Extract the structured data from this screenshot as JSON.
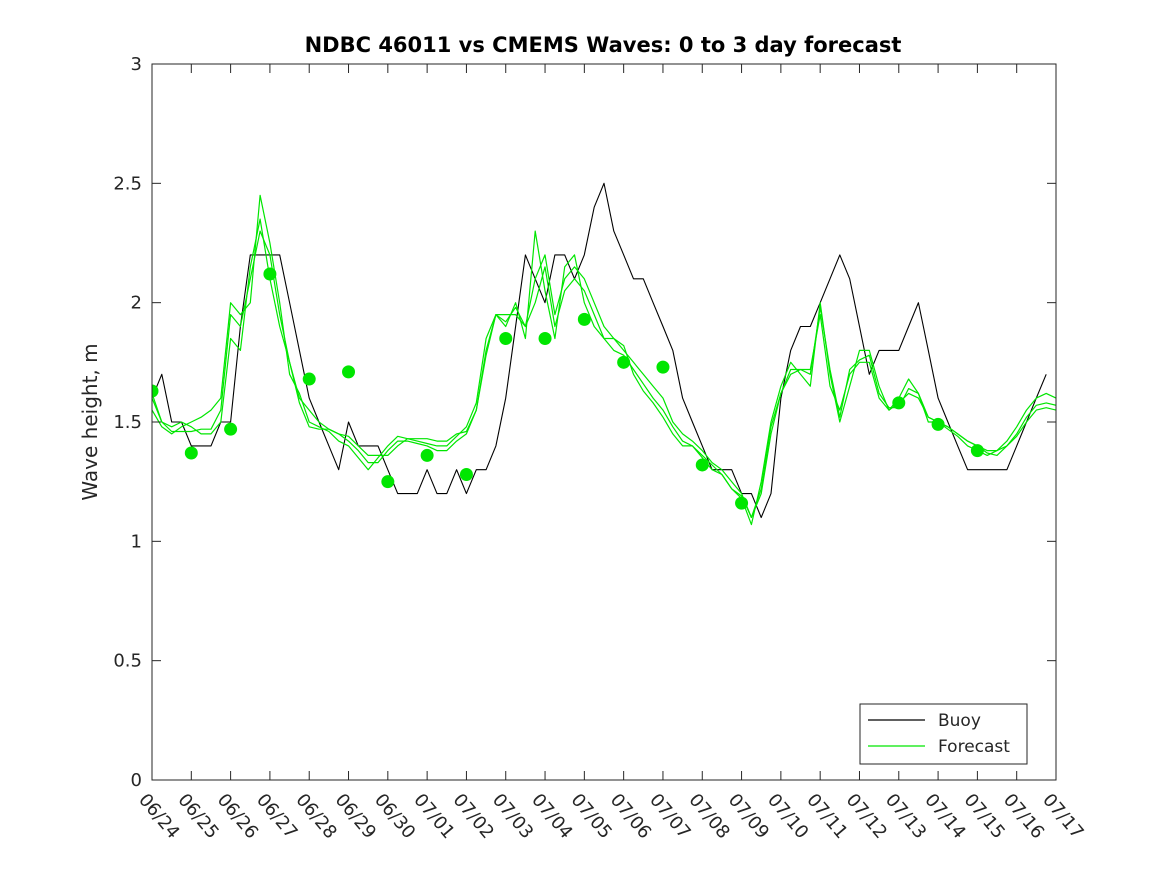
{
  "chart_data": {
    "type": "line",
    "title": "NDBC 46011 vs CMEMS Waves: 0 to 3 day forecast",
    "xlabel": "",
    "ylabel": "Wave height, m",
    "ylim": [
      0,
      3
    ],
    "yticks": [
      "0",
      "0.5",
      "1",
      "1.5",
      "2",
      "2.5",
      "3"
    ],
    "xticks": [
      "06/24",
      "06/25",
      "06/26",
      "06/27",
      "06/28",
      "06/29",
      "06/30",
      "07/01",
      "07/02",
      "07/03",
      "07/04",
      "07/05",
      "07/06",
      "07/07",
      "07/08",
      "07/09",
      "07/10",
      "07/11",
      "07/12",
      "07/13",
      "07/14",
      "07/15",
      "07/16",
      "07/17"
    ],
    "xlim_days": [
      0,
      23
    ],
    "grid": false,
    "legend_position": "bottom-right",
    "legend": [
      {
        "name": "Buoy",
        "color": "#000000"
      },
      {
        "name": "Forecast",
        "color": "#00e600"
      }
    ],
    "series": [
      {
        "name": "Buoy",
        "color": "#000000",
        "x": [
          0,
          0.25,
          0.5,
          0.75,
          1,
          1.25,
          1.5,
          1.75,
          2,
          2.25,
          2.5,
          2.75,
          3,
          3.25,
          3.5,
          3.75,
          4,
          4.25,
          4.5,
          4.75,
          5,
          5.25,
          5.5,
          5.75,
          6,
          6.25,
          6.5,
          6.75,
          7,
          7.25,
          7.5,
          7.75,
          8,
          8.25,
          8.5,
          8.75,
          9,
          9.25,
          9.5,
          9.75,
          10,
          10.25,
          10.5,
          10.75,
          11,
          11.25,
          11.5,
          11.75,
          12,
          12.25,
          12.5,
          12.75,
          13,
          13.25,
          13.5,
          13.75,
          14,
          14.25,
          14.5,
          14.75,
          15,
          15.25,
          15.5,
          15.75,
          16,
          16.25,
          16.5,
          16.75,
          17,
          17.25,
          17.5,
          17.75,
          18,
          18.25,
          18.5,
          18.75,
          19,
          19.25,
          19.5,
          19.75,
          20,
          20.25,
          20.5,
          20.75,
          21,
          21.25,
          21.5,
          21.75,
          22,
          22.25,
          22.5,
          22.75
        ],
        "y": [
          1.6,
          1.7,
          1.5,
          1.5,
          1.4,
          1.4,
          1.4,
          1.5,
          1.5,
          1.9,
          2.2,
          2.2,
          2.2,
          2.2,
          2.0,
          1.8,
          1.6,
          1.5,
          1.4,
          1.3,
          1.5,
          1.4,
          1.4,
          1.4,
          1.3,
          1.2,
          1.2,
          1.2,
          1.3,
          1.2,
          1.2,
          1.3,
          1.2,
          1.3,
          1.3,
          1.4,
          1.6,
          1.9,
          2.2,
          2.1,
          2.0,
          2.2,
          2.2,
          2.1,
          2.2,
          2.4,
          2.5,
          2.3,
          2.2,
          2.1,
          2.1,
          2.0,
          1.9,
          1.8,
          1.6,
          1.5,
          1.4,
          1.3,
          1.3,
          1.3,
          1.2,
          1.2,
          1.1,
          1.2,
          1.6,
          1.8,
          1.9,
          1.9,
          2.0,
          2.1,
          2.2,
          2.1,
          1.9,
          1.7,
          1.8,
          1.8,
          1.8,
          1.9,
          2.0,
          1.8,
          1.6,
          1.5,
          1.4,
          1.3,
          1.3,
          1.3,
          1.3,
          1.3,
          1.4,
          1.5,
          1.6,
          1.7
        ]
      },
      {
        "name": "Forecast",
        "color": "#00e600",
        "x": [
          0,
          0.25,
          0.5,
          0.75,
          1,
          1.25,
          1.5,
          1.75,
          2,
          2.25,
          2.5,
          2.75,
          3,
          3.25,
          3.5,
          3.75,
          4,
          4.25,
          4.5,
          4.75,
          5,
          5.25,
          5.5,
          5.75,
          6,
          6.25,
          6.5,
          6.75,
          7,
          7.25,
          7.5,
          7.75,
          8,
          8.25,
          8.5,
          8.75,
          9,
          9.25,
          9.5,
          9.75,
          10,
          10.25,
          10.5,
          10.75,
          11,
          11.25,
          11.5,
          11.75,
          12,
          12.25,
          12.5,
          12.75,
          13,
          13.25,
          13.5,
          13.75,
          14,
          14.25,
          14.5,
          14.75,
          15,
          15.25,
          15.5,
          15.75,
          16,
          16.25,
          16.5,
          16.75,
          17,
          17.25,
          17.5,
          17.75,
          18,
          18.25,
          18.5,
          18.75,
          19,
          19.25,
          19.5,
          19.75,
          20,
          20.25,
          20.5,
          20.75,
          21,
          21.25,
          21.5,
          21.75,
          22,
          22.25,
          22.5,
          22.75,
          23
        ],
        "y": [
          1.6,
          1.5,
          1.46,
          1.46,
          1.46,
          1.47,
          1.47,
          1.55,
          1.95,
          1.9,
          2.1,
          2.3,
          2.2,
          1.95,
          1.75,
          1.6,
          1.55,
          1.5,
          1.47,
          1.45,
          1.42,
          1.38,
          1.33,
          1.33,
          1.38,
          1.42,
          1.42,
          1.41,
          1.4,
          1.38,
          1.38,
          1.42,
          1.45,
          1.55,
          1.8,
          1.95,
          1.95,
          1.95,
          1.9,
          2.0,
          2.15,
          1.9,
          2.05,
          2.1,
          2.05,
          1.95,
          1.85,
          1.85,
          1.8,
          1.75,
          1.7,
          1.65,
          1.6,
          1.5,
          1.45,
          1.42,
          1.38,
          1.33,
          1.3,
          1.25,
          1.2,
          1.1,
          1.2,
          1.45,
          1.62,
          1.7,
          1.72,
          1.72,
          1.95,
          1.65,
          1.55,
          1.7,
          1.75,
          1.75,
          1.6,
          1.55,
          1.58,
          1.62,
          1.6,
          1.52,
          1.5,
          1.48,
          1.45,
          1.42,
          1.4,
          1.38,
          1.38,
          1.4,
          1.44,
          1.5,
          1.55,
          1.56,
          1.55
        ]
      },
      {
        "name": "Forecast",
        "color": "#00e600",
        "x": [
          0,
          0.25,
          0.5,
          0.75,
          1,
          1.25,
          1.5,
          1.75,
          2,
          2.25,
          2.5,
          2.75,
          3,
          3.25,
          3.5,
          3.75,
          4,
          4.25,
          4.5,
          4.75,
          5,
          5.25,
          5.5,
          5.75,
          6,
          6.25,
          6.5,
          6.75,
          7,
          7.25,
          7.5,
          7.75,
          8,
          8.25,
          8.5,
          8.75,
          9,
          9.25,
          9.5,
          9.75,
          10,
          10.25,
          10.5,
          10.75,
          11,
          11.25,
          11.5,
          11.75,
          12,
          12.25,
          12.5,
          12.75,
          13,
          13.25,
          13.5,
          13.75,
          14,
          14.25,
          14.5,
          14.75,
          15,
          15.25,
          15.5,
          15.75,
          16,
          16.25,
          16.5,
          16.75,
          17,
          17.25,
          17.5,
          17.75,
          18,
          18.25,
          18.5,
          18.75,
          19,
          19.25,
          19.5,
          19.75,
          20,
          20.25,
          20.5,
          20.75,
          21,
          21.25,
          21.5,
          21.75,
          22,
          22.25,
          22.5,
          22.75,
          23
        ],
        "y": [
          1.55,
          1.48,
          1.45,
          1.48,
          1.5,
          1.52,
          1.55,
          1.6,
          2.0,
          1.95,
          2.0,
          2.45,
          2.25,
          2.0,
          1.7,
          1.62,
          1.5,
          1.48,
          1.46,
          1.42,
          1.4,
          1.35,
          1.3,
          1.35,
          1.4,
          1.44,
          1.43,
          1.42,
          1.41,
          1.4,
          1.4,
          1.44,
          1.48,
          1.58,
          1.85,
          1.95,
          1.9,
          2.0,
          1.85,
          2.3,
          2.05,
          1.85,
          2.15,
          2.2,
          2.0,
          1.9,
          1.85,
          1.8,
          1.78,
          1.72,
          1.66,
          1.6,
          1.55,
          1.48,
          1.42,
          1.4,
          1.35,
          1.3,
          1.28,
          1.22,
          1.18,
          1.07,
          1.25,
          1.5,
          1.65,
          1.75,
          1.7,
          1.65,
          2.0,
          1.7,
          1.5,
          1.65,
          1.8,
          1.8,
          1.65,
          1.55,
          1.6,
          1.68,
          1.62,
          1.52,
          1.5,
          1.47,
          1.44,
          1.4,
          1.38,
          1.36,
          1.38,
          1.42,
          1.48,
          1.55,
          1.6,
          1.62,
          1.6
        ]
      },
      {
        "name": "Forecast",
        "color": "#00e600",
        "x": [
          0,
          0.25,
          0.5,
          0.75,
          1,
          1.25,
          1.5,
          1.75,
          2,
          2.25,
          2.5,
          2.75,
          3,
          3.25,
          3.5,
          3.75,
          4,
          4.25,
          4.5,
          4.75,
          5,
          5.25,
          5.5,
          5.75,
          6,
          6.25,
          6.5,
          6.75,
          7,
          7.25,
          7.5,
          7.75,
          8,
          8.25,
          8.5,
          8.75,
          9,
          9.25,
          9.5,
          9.75,
          10,
          10.25,
          10.5,
          10.75,
          11,
          11.25,
          11.5,
          11.75,
          12,
          12.25,
          12.5,
          12.75,
          13,
          13.25,
          13.5,
          13.75,
          14,
          14.25,
          14.5,
          14.75,
          15,
          15.25,
          15.5,
          15.75,
          16,
          16.25,
          16.5,
          16.75,
          17,
          17.25,
          17.5,
          17.75,
          18,
          18.25,
          18.5,
          18.75,
          19,
          19.25,
          19.5,
          19.75,
          20,
          20.25,
          20.5,
          20.75,
          21,
          21.25,
          21.5,
          21.75,
          22,
          22.25,
          22.5,
          22.75,
          23
        ],
        "y": [
          1.62,
          1.5,
          1.48,
          1.5,
          1.48,
          1.45,
          1.45,
          1.5,
          1.85,
          1.8,
          2.15,
          2.35,
          2.1,
          1.9,
          1.75,
          1.58,
          1.48,
          1.47,
          1.47,
          1.45,
          1.44,
          1.4,
          1.36,
          1.36,
          1.36,
          1.4,
          1.43,
          1.43,
          1.43,
          1.42,
          1.42,
          1.45,
          1.46,
          1.55,
          1.78,
          1.95,
          1.92,
          1.98,
          1.9,
          2.1,
          2.2,
          1.95,
          2.1,
          2.15,
          2.1,
          2.0,
          1.9,
          1.85,
          1.82,
          1.7,
          1.63,
          1.58,
          1.52,
          1.45,
          1.4,
          1.4,
          1.36,
          1.32,
          1.28,
          1.22,
          1.19,
          1.1,
          1.22,
          1.48,
          1.62,
          1.72,
          1.72,
          1.7,
          1.98,
          1.72,
          1.52,
          1.72,
          1.76,
          1.78,
          1.62,
          1.56,
          1.56,
          1.64,
          1.62,
          1.5,
          1.5,
          1.48,
          1.45,
          1.42,
          1.4,
          1.37,
          1.36,
          1.4,
          1.45,
          1.52,
          1.57,
          1.58,
          1.57
        ]
      }
    ],
    "markers": {
      "name": "Forecast",
      "color": "#00e600",
      "x": [
        0,
        1,
        2,
        3,
        4,
        5,
        6,
        7,
        8,
        9,
        10,
        11,
        12,
        13,
        14,
        15,
        19,
        20,
        21
      ],
      "y": [
        1.63,
        1.37,
        1.47,
        2.12,
        1.68,
        1.71,
        1.25,
        1.36,
        1.28,
        1.85,
        1.85,
        1.93,
        1.75,
        1.73,
        1.32,
        1.16,
        1.58,
        1.49,
        1.38
      ]
    }
  }
}
